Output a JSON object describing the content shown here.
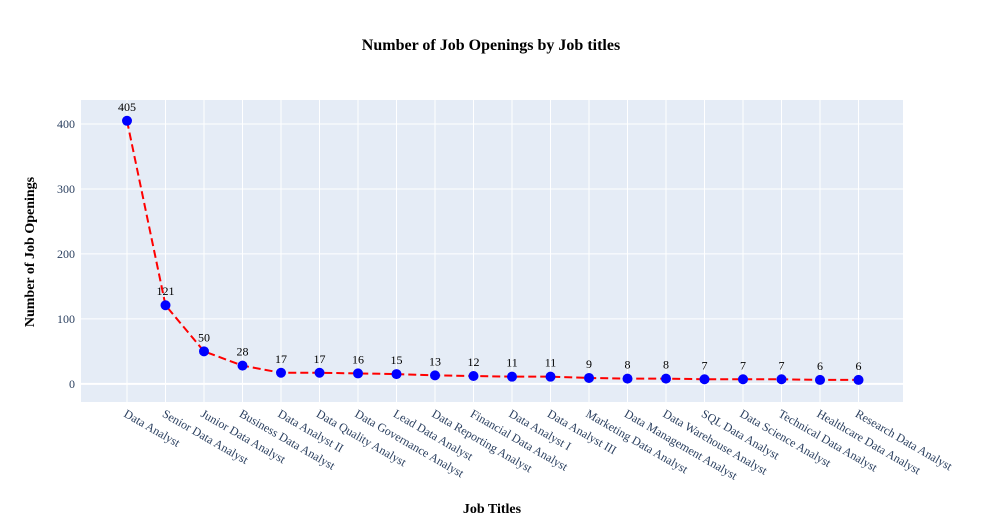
{
  "chart_data": {
    "type": "line",
    "title": "Number of Job Openings by Job titles",
    "xlabel": "Job Titles",
    "ylabel": "Number of Job Openings",
    "categories": [
      "Data Analyst",
      "Senior Data Analyst",
      "Junior Data Analyst",
      "Business Data Analyst",
      "Data Analyst II",
      "Data Quality Analyst",
      "Data Governance Analyst",
      "Lead Data Analyst",
      "Data Reporting Analyst",
      "Financial Data Analyst",
      "Data Analyst I",
      "Data Analyst III",
      "Marketing Data Analyst",
      "Data Management Analyst",
      "Data Warehouse Analyst",
      "SQL Data Analyst",
      "Data Science Analyst",
      "Technical Data Analyst",
      "Healthcare Data Analyst",
      "Research Data Analyst"
    ],
    "values": [
      405,
      121,
      50,
      28,
      17,
      17,
      16,
      15,
      13,
      12,
      11,
      11,
      9,
      8,
      8,
      7,
      7,
      7,
      6,
      6
    ],
    "ylim": [
      -28,
      437
    ],
    "yticks": [
      0,
      100,
      200,
      300,
      400
    ],
    "grid": true,
    "line_color": "#ff0000",
    "line_style": "dashed",
    "marker_color": "#0000ff",
    "plot_background": "#e5ecf6",
    "gridline_color": "#ffffff"
  }
}
